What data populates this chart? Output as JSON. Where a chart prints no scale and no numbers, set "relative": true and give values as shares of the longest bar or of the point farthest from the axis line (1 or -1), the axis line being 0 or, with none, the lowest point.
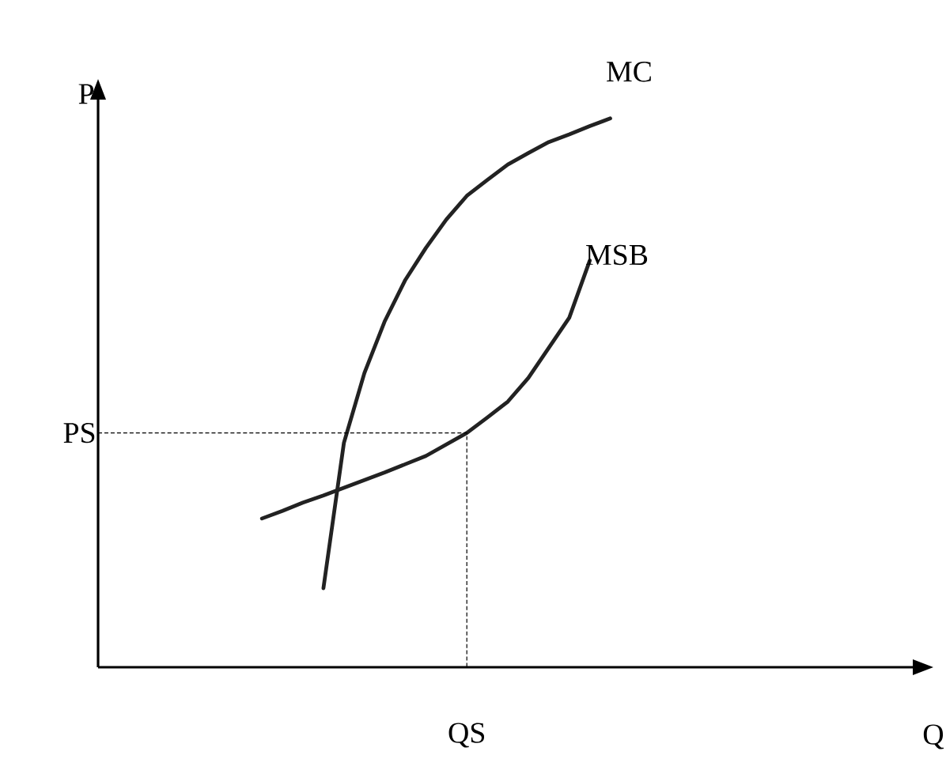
{
  "chart_data": {
    "type": "line",
    "relative": true,
    "xlabel": "Q",
    "ylabel": "P",
    "marker": "none",
    "line_style": "solid",
    "categories": [
      null,
      null,
      null,
      null,
      null,
      null,
      null,
      null,
      null,
      null,
      null,
      null,
      null,
      null,
      null,
      null,
      null,
      null,
      null,
      null,
      null,
      null,
      null,
      null,
      null,
      null,
      null,
      null,
      null,
      null,
      null,
      null,
      null,
      null,
      null,
      null,
      null,
      null,
      null,
      null,
      null
    ],
    "series": [
      {
        "name": "MC",
        "color": "#222222",
        "values": [
          null,
          null,
          null,
          null,
          null,
          null,
          null,
          null,
          null,
          null,
          null,
          0.144,
          0.409,
          0.536,
          0.631,
          0.706,
          0.764,
          0.816,
          0.859,
          0.888,
          0.916,
          0.937,
          0.957,
          0.971,
          0.986,
          1.0,
          null,
          null,
          null,
          null,
          null,
          null,
          null,
          null,
          null,
          null,
          null,
          null,
          null,
          null,
          null
        ]
      },
      {
        "name": "MSB",
        "color": "#222222",
        "values": [
          null,
          null,
          null,
          null,
          null,
          null,
          null,
          null,
          0.271,
          0.285,
          0.3,
          0.313,
          0.327,
          0.341,
          0.355,
          0.37,
          0.385,
          0.406,
          0.427,
          0.455,
          0.484,
          0.527,
          0.582,
          0.637,
          0.741,
          null,
          null,
          null,
          null,
          null,
          null,
          null,
          null,
          null,
          null,
          null,
          null,
          null,
          null,
          null,
          null
        ]
      }
    ],
    "ref_lines": [
      {
        "axis": "y",
        "value": 0.427,
        "label": "PS",
        "line_style": "dashed"
      }
    ],
    "annotations": [
      "QS"
    ]
  }
}
